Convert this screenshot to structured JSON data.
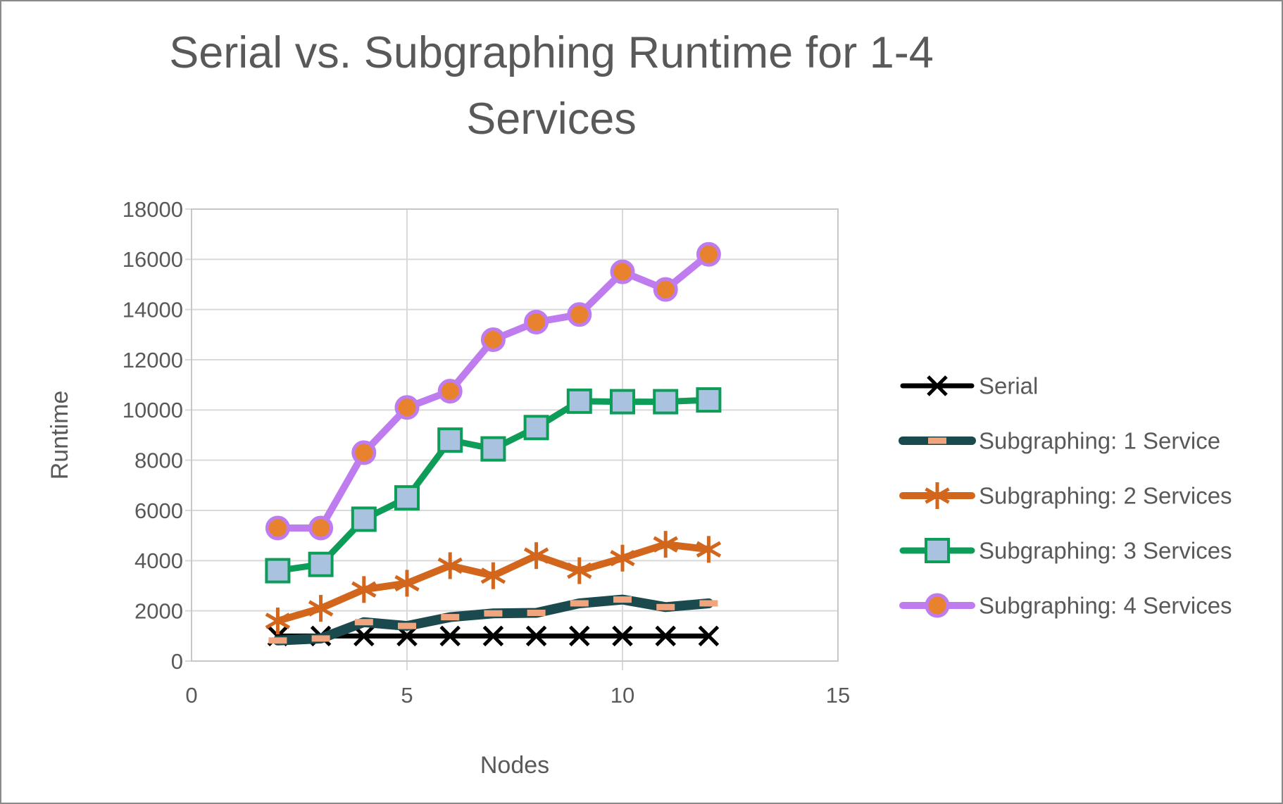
{
  "title_lines": [
    "Serial vs. Subgraphing Runtime for 1-4",
    "Services"
  ],
  "axes": {
    "x_label": "Nodes",
    "y_label": "Runtime",
    "x_ticks": [
      0,
      5,
      10,
      15
    ],
    "y_ticks": [
      0,
      2000,
      4000,
      6000,
      8000,
      10000,
      12000,
      14000,
      16000,
      18000
    ]
  },
  "style_colors": {
    "text": "#595959",
    "gridline": "#d9d9d9",
    "plot_border": "#c7c7c7"
  },
  "chart_data": {
    "type": "line",
    "title": "Serial vs. Subgraphing Runtime for 1-4 Services",
    "xlabel": "Nodes",
    "ylabel": "Runtime",
    "xlim": [
      0,
      15
    ],
    "ylim": [
      0,
      18000
    ],
    "grid": true,
    "legend_position": "right",
    "x": [
      2,
      3,
      4,
      5,
      6,
      7,
      8,
      9,
      10,
      11,
      12
    ],
    "series": [
      {
        "name": "Serial",
        "color": "#000000",
        "marker": "x",
        "line_width": 7,
        "values": [
          1000,
          1000,
          1000,
          1000,
          1000,
          1000,
          1000,
          1000,
          1000,
          1000,
          1000
        ]
      },
      {
        "name": "Subgraphing: 1 Service",
        "color": "#1b4a4e",
        "marker": "dash",
        "marker_fill": "#f1a57f",
        "line_width": 14,
        "values": [
          820,
          900,
          1550,
          1400,
          1750,
          1900,
          1920,
          2300,
          2450,
          2150,
          2300
        ]
      },
      {
        "name": "Subgraphing: 2 Services",
        "color": "#d2661c",
        "marker": "asterisk",
        "line_width": 10,
        "values": [
          1600,
          2100,
          2850,
          3100,
          3800,
          3400,
          4200,
          3600,
          4100,
          4650,
          4450
        ]
      },
      {
        "name": "Subgraphing: 3 Services",
        "color": "#0e9d58",
        "marker": "square",
        "marker_fill": "#a9c2df",
        "line_width": 9,
        "values": [
          3600,
          3850,
          5650,
          6500,
          8800,
          8450,
          9300,
          10350,
          10330,
          10330,
          10400
        ]
      },
      {
        "name": "Subgraphing: 4 Services",
        "color": "#bf7cef",
        "marker": "circle",
        "marker_fill": "#e8822e",
        "line_width": 10,
        "values": [
          5300,
          5300,
          8300,
          10100,
          10750,
          12800,
          13500,
          13800,
          15500,
          14800,
          16200
        ]
      }
    ]
  }
}
